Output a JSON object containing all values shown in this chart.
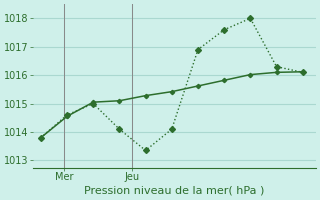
{
  "line1_x": [
    0,
    1,
    2,
    3,
    4,
    5,
    6,
    7,
    8,
    9,
    10
  ],
  "line1_y": [
    1013.8,
    1014.6,
    1015.0,
    1014.1,
    1013.35,
    1014.1,
    1016.9,
    1017.6,
    1018.0,
    1016.3,
    1016.1
  ],
  "line2_x": [
    0,
    1,
    2,
    3,
    4,
    5,
    6,
    7,
    8,
    9,
    10
  ],
  "line2_y": [
    1013.8,
    1014.55,
    1015.05,
    1015.1,
    1015.28,
    1015.42,
    1015.62,
    1015.82,
    1016.02,
    1016.1,
    1016.12
  ],
  "line_color": "#2d6e2d",
  "bg_color": "#cff0ea",
  "grid_color": "#aad8d0",
  "xlabel": "Pression niveau de la mer( hPa )",
  "ylim": [
    1012.75,
    1018.5
  ],
  "yticks": [
    1013,
    1014,
    1015,
    1016,
    1017,
    1018
  ],
  "xlim": [
    -0.3,
    10.5
  ],
  "mer_x": 0.9,
  "jeu_x": 3.5,
  "vline_color": "#888888",
  "tick_fontsize": 7,
  "label_fontsize": 8
}
